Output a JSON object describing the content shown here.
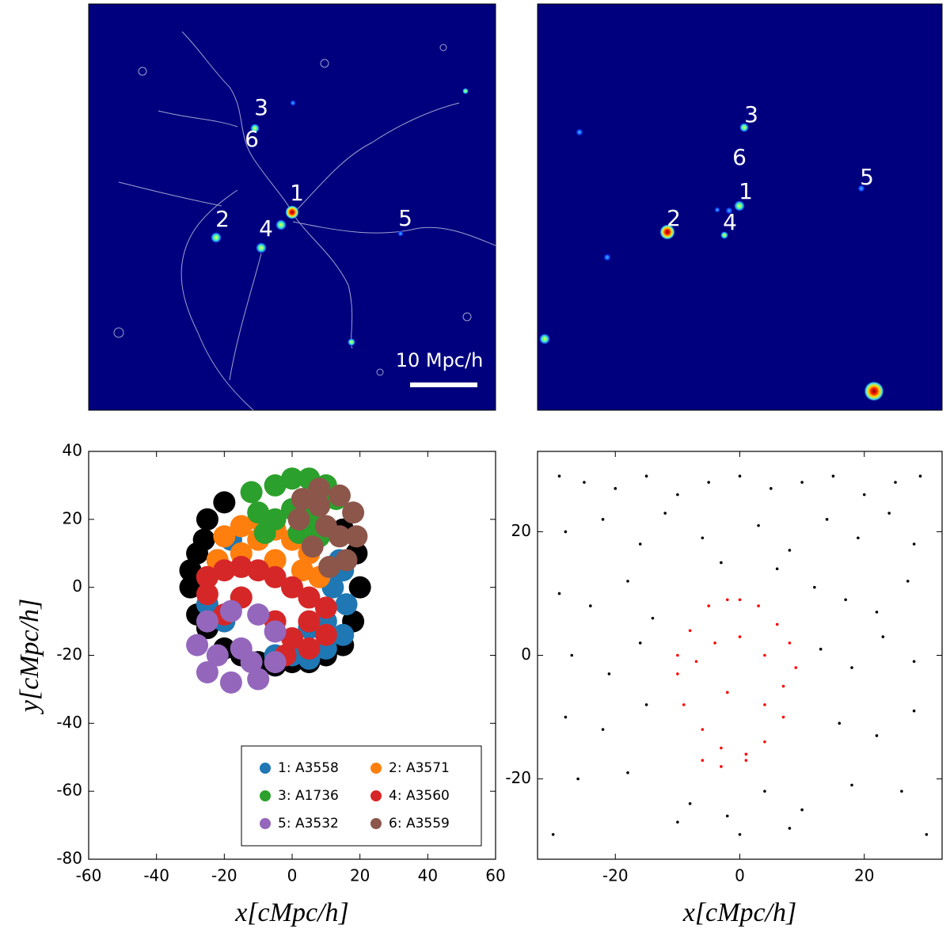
{
  "maps": [
    {
      "annotations": [
        "3",
        "6",
        "1",
        "2",
        "4",
        "5"
      ],
      "scale_bar": "10 Mpc/h"
    },
    {
      "annotations": [
        "3",
        "6",
        "1",
        "2",
        "4",
        "5"
      ]
    }
  ],
  "chart_data": [
    {
      "type": "scatter",
      "xlabel": "x[cMpc/h]",
      "ylabel": "y[cMpc/h]",
      "xlim": [
        -60,
        60
      ],
      "ylim": [
        -80,
        40
      ],
      "xticks": [
        -60,
        -40,
        -20,
        0,
        20,
        40,
        60
      ],
      "yticks": [
        -80,
        -60,
        -40,
        -20,
        0,
        20,
        40
      ],
      "legend": "lower right",
      "series": [
        {
          "color": "#000000",
          "x": [
            -25,
            -28,
            -30,
            -28,
            -20,
            -10,
            0,
            10,
            18,
            20,
            19,
            15,
            -20,
            -26,
            -15,
            5,
            -25,
            -30,
            -5,
            15
          ],
          "values": [
            20,
            10,
            0,
            -8,
            -18,
            -22,
            -22,
            -20,
            -10,
            0,
            10,
            17,
            25,
            14,
            -20,
            -22,
            -12,
            5,
            -23,
            -17
          ]
        },
        {
          "name": "1: A3558",
          "color": "#1f77b4",
          "x": [
            15,
            16,
            15,
            10,
            5,
            0,
            12,
            10,
            14,
            5,
            -5,
            -20,
            -25,
            -22,
            -18
          ],
          "values": [
            5,
            -5,
            -14,
            -18,
            -21,
            -20,
            0,
            -10,
            8,
            -12,
            -20,
            -10,
            -5,
            8,
            14
          ]
        },
        {
          "name": "2: A3571",
          "color": "#ff7f0e",
          "x": [
            -20,
            -15,
            -10,
            -5,
            0,
            5,
            8,
            -22,
            -25,
            -15,
            -5,
            3,
            -10
          ],
          "values": [
            15,
            18,
            20,
            17,
            14,
            10,
            3,
            8,
            3,
            10,
            8,
            5,
            14
          ]
        },
        {
          "name": "3: A1736",
          "color": "#2ca02c",
          "x": [
            -12,
            -10,
            -5,
            0,
            5,
            10,
            13,
            -5,
            0,
            5,
            8,
            2,
            -8
          ],
          "values": [
            28,
            22,
            30,
            32,
            32,
            30,
            26,
            20,
            23,
            20,
            15,
            16,
            16
          ]
        },
        {
          "name": "4: A3560",
          "color": "#d62728",
          "x": [
            -25,
            -25,
            -20,
            -15,
            -10,
            -5,
            0,
            5,
            10,
            10,
            5,
            0,
            -5,
            -15,
            -20,
            5,
            -2
          ],
          "values": [
            -2,
            3,
            5,
            6,
            5,
            3,
            0,
            -3,
            -6,
            -14,
            -18,
            -15,
            -10,
            -3,
            -8,
            -10,
            -20
          ]
        },
        {
          "name": "5: A3532",
          "color": "#9467bd",
          "x": [
            -25,
            -28,
            -25,
            -18,
            -10,
            -5,
            -5,
            -10,
            -18,
            -15,
            -22,
            -12
          ],
          "values": [
            -10,
            -17,
            -25,
            -28,
            -27,
            -22,
            -13,
            -8,
            -7,
            -18,
            -20,
            -22
          ]
        },
        {
          "name": "6: A3559",
          "color": "#8c564b",
          "x": [
            3,
            8,
            14,
            18,
            19,
            16,
            11,
            6,
            2,
            10,
            14,
            8
          ],
          "values": [
            26,
            29,
            27,
            22,
            15,
            8,
            6,
            12,
            20,
            18,
            15,
            24
          ]
        }
      ]
    },
    {
      "type": "scatter",
      "xlabel": "x[cMpc/h]",
      "xlim": [
        -32.5,
        32.5
      ],
      "ylim": [
        -33,
        33
      ],
      "xticks": [
        -20,
        0,
        20
      ],
      "yticks": [
        -20,
        0,
        20
      ],
      "series": [
        {
          "color": "#000000",
          "x": [
            -29,
            -25,
            -20,
            -15,
            -10,
            -5,
            0,
            5,
            10,
            15,
            20,
            25,
            29,
            -28,
            -22,
            -16,
            -12,
            -6,
            3,
            8,
            14,
            19,
            24,
            28,
            -29,
            -24,
            -18,
            -14,
            12,
            17,
            22,
            27,
            -27,
            -21,
            -16,
            13,
            18,
            23,
            28,
            -28,
            -22,
            -15,
            -8,
            -2,
            4,
            10,
            16,
            22,
            28,
            -26,
            -18,
            -10,
            0,
            8,
            18,
            26,
            -30,
            30,
            -3,
            6
          ],
          "values": [
            29,
            28,
            27,
            29,
            26,
            28,
            29,
            27,
            28,
            29,
            26,
            28,
            29,
            20,
            22,
            18,
            23,
            19,
            21,
            17,
            22,
            19,
            23,
            18,
            10,
            8,
            12,
            6,
            11,
            9,
            7,
            12,
            0,
            -3,
            2,
            1,
            -2,
            3,
            -1,
            -10,
            -12,
            -8,
            -24,
            -26,
            -22,
            -25,
            -11,
            -13,
            -9,
            -20,
            -19,
            -27,
            -29,
            -28,
            -21,
            -22,
            -29,
            -29,
            15,
            14
          ]
        },
        {
          "color": "#ff0000",
          "x": [
            -10,
            -8,
            -5,
            -2,
            0,
            3,
            6,
            8,
            9,
            -9,
            -6,
            -3,
            1,
            4,
            7,
            -10,
            -7,
            -4,
            0,
            4,
            7,
            -6,
            -3,
            1,
            4,
            -2
          ],
          "values": [
            -3,
            4,
            8,
            9,
            9,
            8,
            5,
            2,
            -2,
            -8,
            -12,
            -15,
            -16,
            -14,
            -10,
            0,
            -1,
            2,
            3,
            0,
            -5,
            -17,
            -18,
            -17,
            -8,
            -6
          ]
        }
      ]
    }
  ]
}
